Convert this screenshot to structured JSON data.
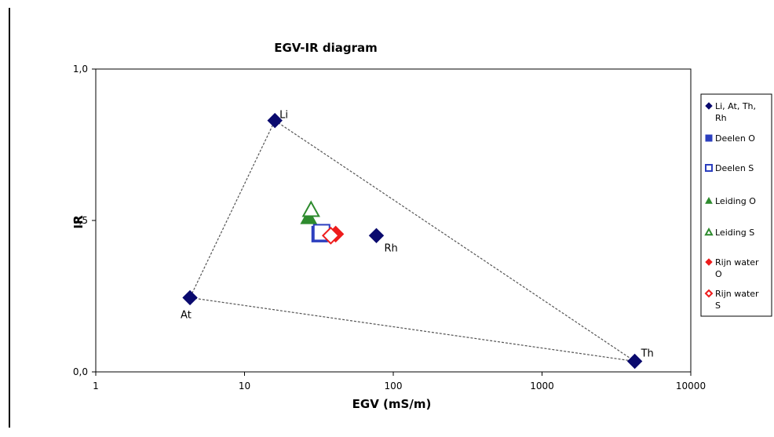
{
  "chart_data": {
    "type": "scatter",
    "title": "EGV-IR diagram",
    "xlabel": "EGV (mS/m)",
    "ylabel": "IR",
    "x_scale": "log",
    "xlim": [
      1,
      10000
    ],
    "ylim": [
      0,
      1
    ],
    "x_ticks": [
      "1",
      "10",
      "100",
      "1000",
      "10000"
    ],
    "y_ticks": [
      "0,0",
      "0,5",
      "1,0"
    ],
    "grid": false,
    "legend_position": "right",
    "triangle_line": {
      "style": "dashed",
      "color": "#555555",
      "connects": [
        "Li",
        "Th",
        "At",
        "Li"
      ]
    },
    "series": [
      {
        "name": "Li, At, Th, Rh",
        "marker": "diamond",
        "filled": true,
        "color": "#0a0a6e",
        "points": [
          {
            "label": "Li",
            "x": 16,
            "y": 0.83
          },
          {
            "label": "At",
            "x": 4.3,
            "y": 0.245
          },
          {
            "label": "Th",
            "x": 4200,
            "y": 0.035
          },
          {
            "label": "Rh",
            "x": 77,
            "y": 0.45
          }
        ]
      },
      {
        "name": "Deelen O",
        "marker": "square",
        "filled": true,
        "color": "#2c3fbf",
        "points": [
          {
            "x": 32,
            "y": 0.455
          }
        ]
      },
      {
        "name": "Deelen S",
        "marker": "square",
        "filled": false,
        "color": "#2c3fbf",
        "points": [
          {
            "x": 33,
            "y": 0.46
          }
        ]
      },
      {
        "name": "Leiding O",
        "marker": "triangle",
        "filled": true,
        "color": "#2e8b2e",
        "points": [
          {
            "x": 27,
            "y": 0.51
          }
        ]
      },
      {
        "name": "Leiding S",
        "marker": "triangle",
        "filled": false,
        "color": "#2e8b2e",
        "points": [
          {
            "x": 28,
            "y": 0.535
          }
        ]
      },
      {
        "name": "Rijn water O",
        "marker": "diamond",
        "filled": true,
        "color": "#ee1c1c",
        "points": [
          {
            "x": 41,
            "y": 0.455
          }
        ]
      },
      {
        "name": "Rijn water S",
        "marker": "diamond",
        "filled": false,
        "color": "#ee1c1c",
        "points": [
          {
            "x": 38,
            "y": 0.45
          }
        ]
      }
    ],
    "legend_entries": [
      {
        "lines": [
          "Li, At, Th,",
          "Rh"
        ],
        "marker": "diamond",
        "filled": true,
        "color": "#0a0a6e"
      },
      {
        "lines": [
          "Deelen O"
        ],
        "marker": "square",
        "filled": true,
        "color": "#2c3fbf"
      },
      {
        "lines": [
          "Deelen S"
        ],
        "marker": "square",
        "filled": false,
        "color": "#2c3fbf"
      },
      {
        "lines": [
          "Leiding O"
        ],
        "marker": "triangle",
        "filled": true,
        "color": "#2e8b2e"
      },
      {
        "lines": [
          "Leiding S"
        ],
        "marker": "triangle",
        "filled": false,
        "color": "#2e8b2e"
      },
      {
        "lines": [
          "Rijn water",
          "O"
        ],
        "marker": "diamond",
        "filled": true,
        "color": "#ee1c1c"
      },
      {
        "lines": [
          "Rijn water",
          "S"
        ],
        "marker": "diamond",
        "filled": false,
        "color": "#ee1c1c"
      }
    ]
  }
}
